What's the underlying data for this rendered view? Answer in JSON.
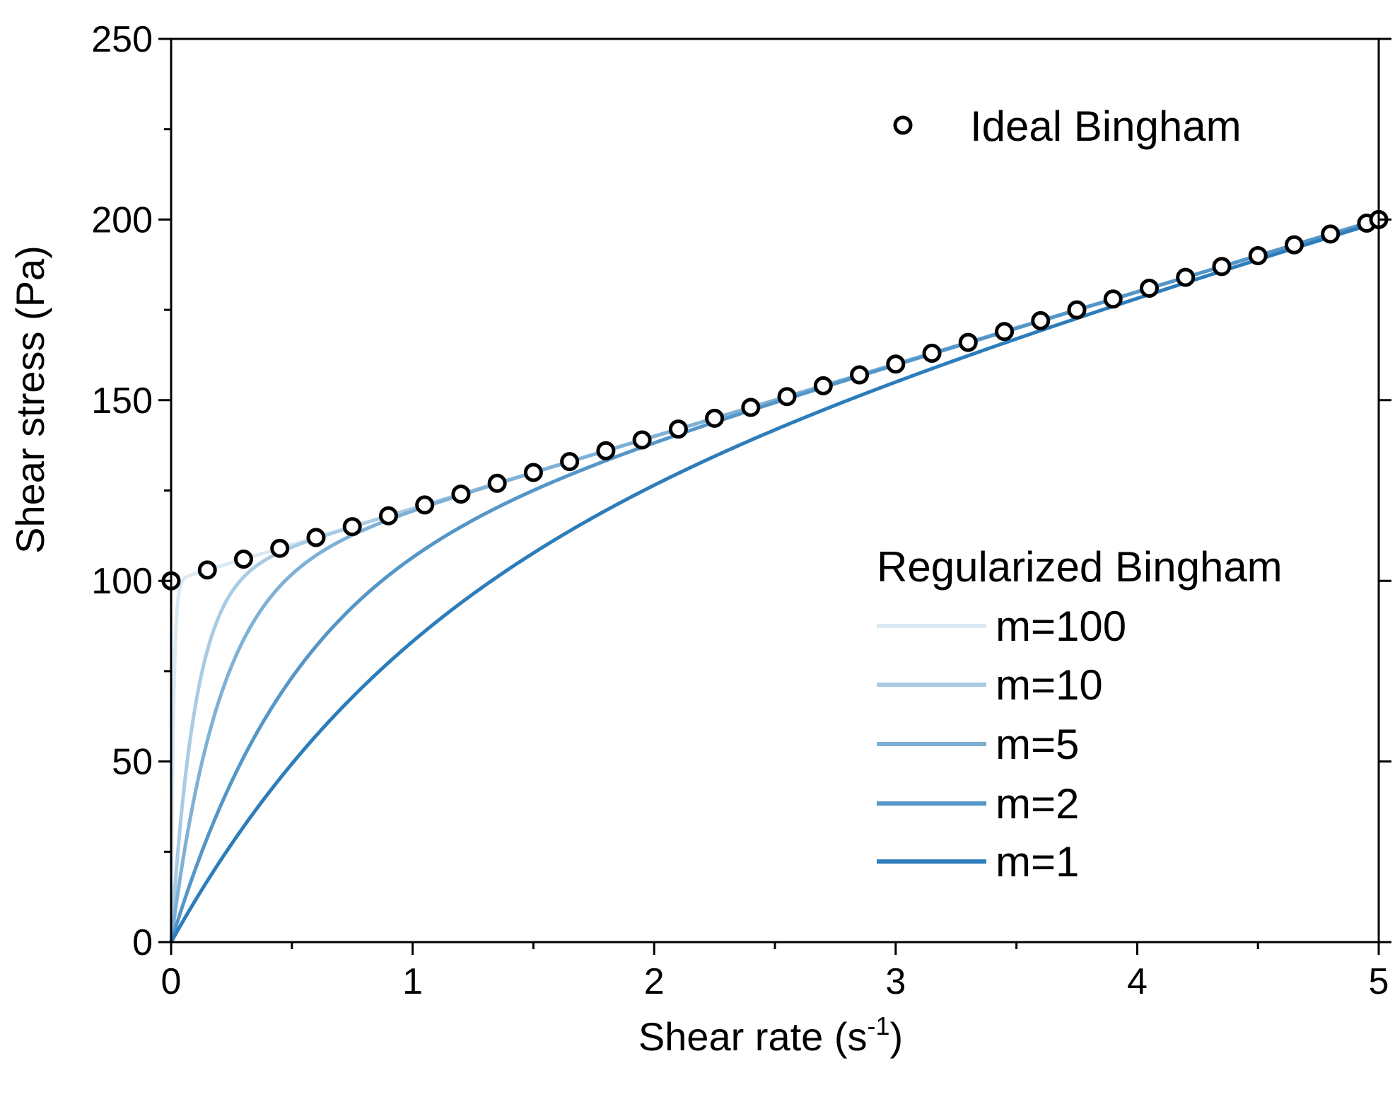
{
  "chart_data": {
    "type": "line",
    "title": "",
    "xlabel": "Shear rate (s",
    "xlabel_sup": "-1",
    "xlabel_close": ")",
    "ylabel": "Shear stress (Pa)",
    "xlim": [
      0,
      5
    ],
    "ylim": [
      0,
      250
    ],
    "xticks": [
      "0",
      "1",
      "2",
      "3",
      "4",
      "5"
    ],
    "yticks": [
      "0",
      "50",
      "100",
      "150",
      "200",
      "250"
    ],
    "grid": false,
    "model": {
      "yield_stress": 100,
      "plastic_viscosity": 20
    },
    "ideal_series": {
      "name": "Ideal Bingham",
      "marker": "open-circle",
      "color": "#000000",
      "x": [
        0,
        0.15,
        0.3,
        0.45,
        0.6,
        0.75,
        0.9,
        1.05,
        1.2,
        1.35,
        1.5,
        1.65,
        1.8,
        1.95,
        2.1,
        2.25,
        2.4,
        2.55,
        2.7,
        2.85,
        3.0,
        3.15,
        3.3,
        3.45,
        3.6,
        3.75,
        3.9,
        4.05,
        4.2,
        4.35,
        4.5,
        4.65,
        4.8,
        4.95,
        5.0
      ],
      "y": [
        100,
        103,
        106,
        109,
        112,
        115,
        118,
        121,
        124,
        127,
        130,
        133,
        136,
        139,
        142,
        145,
        148,
        151,
        154,
        157,
        160,
        163,
        166,
        169,
        172,
        175,
        178,
        181,
        184,
        187,
        190,
        193,
        196,
        199,
        200
      ]
    },
    "legend_title": "Regularized Bingham",
    "series": [
      {
        "name": "m=100",
        "m": 100,
        "color": "#dbe9f3"
      },
      {
        "name": "m=10",
        "m": 10,
        "color": "#a9cbe3"
      },
      {
        "name": "m=5",
        "m": 5,
        "color": "#7fb1d6"
      },
      {
        "name": "m=2",
        "m": 2,
        "color": "#5596c8"
      },
      {
        "name": "m=1",
        "m": 1,
        "color": "#2d7dbb"
      }
    ],
    "legend_placement": "right"
  }
}
